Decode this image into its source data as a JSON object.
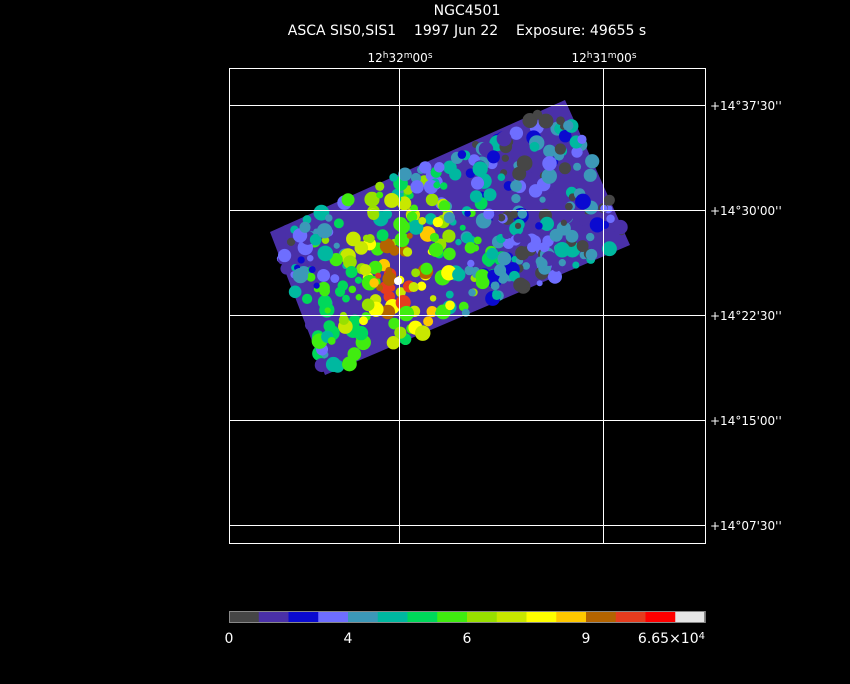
{
  "header": {
    "title": "NGC4501",
    "subtitle": "ASCA SIS0,SIS1    1997 Jun 22    Exposure: 49655 s"
  },
  "ra_labels": [
    [
      "12",
      "h",
      "32",
      "m",
      "00",
      "s"
    ],
    [
      "12",
      "h",
      "31",
      "m",
      "00",
      "s"
    ]
  ],
  "dec_labels": [
    "+14°37'30''",
    "+14°30'00''",
    "+14°22'30''",
    "+14°15'00''",
    "+14°07'30''"
  ],
  "colorbar": {
    "colors": [
      "#464646",
      "#4a30a8",
      "#0a0ad0",
      "#6e6eff",
      "#3c98b8",
      "#00b8a0",
      "#00d85a",
      "#40ec10",
      "#98e000",
      "#c8e800",
      "#ffff00",
      "#ffc800",
      "#b46400",
      "#e63c1e",
      "#ff0000",
      "#e6e6e6",
      "#ffffff"
    ],
    "labels": [
      "0",
      "4",
      "6",
      "9",
      [
        "6.65×10",
        "4"
      ]
    ]
  }
}
